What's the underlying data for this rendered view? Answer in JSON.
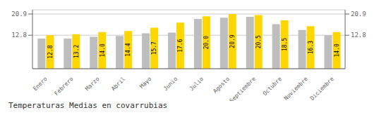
{
  "chart_data": {
    "type": "bar",
    "title": "Temperaturas Medias en covarrubias",
    "categories": [
      "Enero",
      "Febrero",
      "Marzo",
      "Abril",
      "Mayo",
      "Junio",
      "Julio",
      "Agosto",
      "Septiembre",
      "Octubre",
      "Noviembre",
      "Diciembre"
    ],
    "series": [
      {
        "color": "#BEBEBE",
        "values": [
          11.5,
          11.5,
          12.2,
          12.5,
          13.5,
          13.8,
          19.0,
          19.5,
          19.8,
          17.0,
          14.8,
          12.8
        ]
      },
      {
        "color": "#FFD700",
        "values": [
          12.8,
          13.2,
          14.0,
          14.4,
          15.7,
          17.6,
          20.0,
          20.9,
          20.5,
          18.5,
          16.3,
          14.0
        ],
        "value_labels": [
          "12.8",
          "13.2",
          "14.0",
          "14.4",
          "15.7",
          "17.6",
          "20.0",
          "20.9",
          "20.5",
          "18.5",
          "16.3",
          "14.0"
        ],
        "data_labels": true
      }
    ],
    "ylim": [
      0,
      22.5
    ],
    "yticks": [
      12.8,
      20.9
    ],
    "y2lim": [
      0,
      22.5
    ],
    "y2ticks": [
      12.8,
      20.9
    ],
    "grid": true
  }
}
